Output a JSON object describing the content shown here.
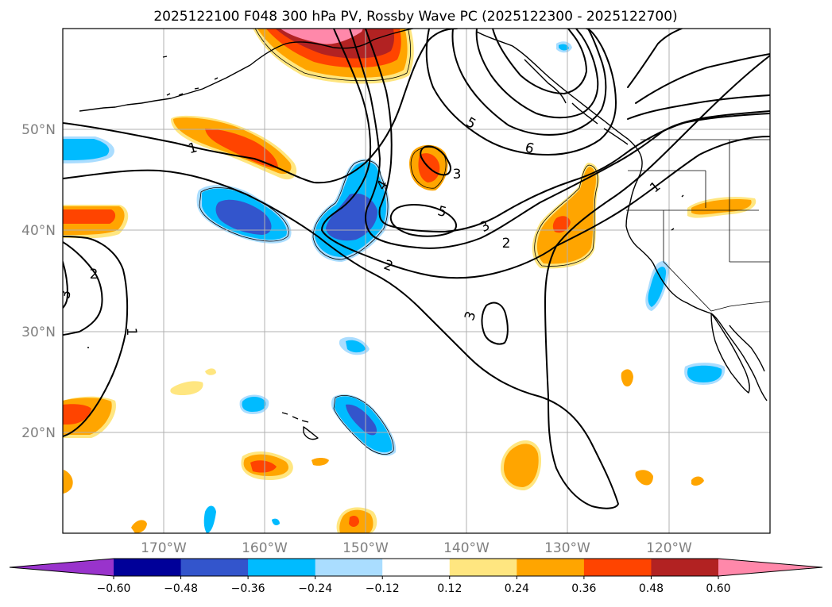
{
  "title": "2025122100 F048 300 hPa PV, Rossby Wave PC (2025122300 - 2025122700)",
  "lon_labels": [
    "170°W",
    "160°W",
    "150°W",
    "140°W",
    "130°W",
    "120°W"
  ],
  "lat_labels": [
    "50°N",
    "40°N",
    "30°N",
    "20°N"
  ],
  "contour_labels": [
    "1",
    "2",
    "3",
    "4",
    "5",
    "6",
    "1",
    "2",
    "3",
    "5",
    "3",
    "2",
    "3",
    "1"
  ],
  "colorbar": {
    "ticks": [
      "−0.60",
      "−0.48",
      "−0.36",
      "−0.24",
      "−0.12",
      "0.12",
      "0.24",
      "0.36",
      "0.48",
      "0.60"
    ],
    "colors": [
      "#9933cc",
      "#000099",
      "#3355cc",
      "#00bbff",
      "#aaddff",
      "#ffffff",
      "#ffe680",
      "#ffa500",
      "#ff4400",
      "#b22222",
      "#ff88aa",
      "#ff88aa"
    ]
  },
  "chart_data": {
    "type": "heatmap",
    "title": "2025122100 F048 300 hPa PV, Rossby Wave PC (2025122300 - 2025122700)",
    "variable_shaded": "Rossby Wave PC anomaly",
    "variable_contoured": "300 hPa PV (PVU)",
    "contour_levels": [
      1,
      2,
      3,
      4,
      5,
      6
    ],
    "color_levels": [
      -0.6,
      -0.48,
      -0.36,
      -0.24,
      -0.12,
      0.12,
      0.24,
      0.36,
      0.48,
      0.6
    ],
    "extend": "both",
    "lon_range": [
      -180,
      -110
    ],
    "lat_range": [
      10,
      60
    ],
    "xticks": [
      -170,
      -160,
      -150,
      -140,
      -130,
      -120
    ],
    "yticks": [
      20,
      30,
      40,
      50
    ],
    "grid": true,
    "colorbar_position": "bottom"
  }
}
